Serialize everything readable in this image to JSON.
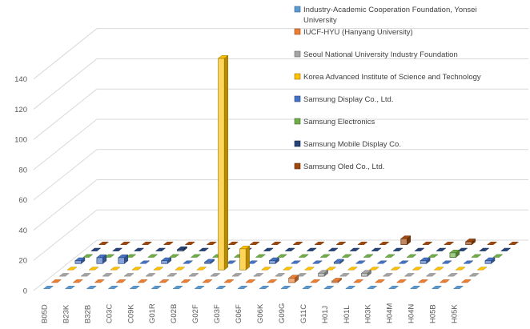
{
  "chart_data": {
    "type": "bar",
    "style": "3d-column",
    "title": "",
    "xlabel": "",
    "ylabel": "",
    "ylim": [
      0,
      150
    ],
    "yticks": [
      0,
      20,
      40,
      60,
      80,
      100,
      120,
      140
    ],
    "grid": true,
    "legend_position": "right",
    "categories": [
      "B05D",
      "B23K",
      "B32B",
      "C03C",
      "C09K",
      "G01R",
      "G02B",
      "G02F",
      "G03F",
      "G06F",
      "G06K",
      "G09G",
      "G11C",
      "H01J",
      "H01L",
      "H03K",
      "H04M",
      "H04N",
      "H05B",
      "H05K"
    ],
    "x_tick_labels": [
      "B05D",
      "B23K",
      "B32B",
      "C03C",
      "C09K",
      "G01R",
      "G02B",
      "G02F",
      "G03F",
      "G06F",
      "G06K",
      "G09G",
      "G11C",
      "H01J",
      "H01L",
      "H03K",
      "H04M",
      "H04N",
      "H05B",
      "H05K"
    ],
    "series": [
      {
        "name": "Industry-Academic Cooperation  Foundation, Yonsei University",
        "color": "#5B9BD5",
        "values": [
          0,
          0,
          0,
          0,
          0,
          0,
          0,
          0,
          0,
          0,
          0,
          0,
          0,
          0,
          0,
          0,
          0,
          0,
          0,
          0
        ]
      },
      {
        "name": "IUCF-HYU (Hanyang University)",
        "color": "#ED7D31",
        "values": [
          0,
          0,
          0,
          0,
          0,
          0,
          0,
          0,
          0,
          0,
          0,
          3,
          0,
          1,
          0,
          0,
          0,
          0,
          0,
          0
        ]
      },
      {
        "name": "Seoul National University Industry Foundation",
        "color": "#A5A5A5",
        "values": [
          0,
          0,
          0,
          0,
          0,
          0,
          0,
          0,
          0,
          0,
          0,
          0,
          2,
          0,
          2,
          0,
          0,
          0,
          0,
          0
        ]
      },
      {
        "name": "Korea Advanced  Institute of Science and Technology",
        "color": "#FFC000",
        "values": [
          0,
          0,
          0,
          0,
          0,
          0,
          0,
          140,
          14,
          0,
          0,
          0,
          0,
          0,
          0,
          0,
          0,
          0,
          0,
          0
        ]
      },
      {
        "name": "Samsung Display Co., Ltd.",
        "color": "#4472C4",
        "values": [
          2,
          4,
          4,
          0,
          2,
          0,
          1,
          0,
          0,
          2,
          0,
          0,
          1,
          0,
          0,
          0,
          2,
          0,
          0,
          2
        ]
      },
      {
        "name": "Samsung Electronics",
        "color": "#70AD47",
        "values": [
          0,
          0,
          0,
          0,
          0,
          0,
          0,
          0,
          0,
          0,
          0,
          0,
          0,
          0,
          0,
          0,
          0,
          3,
          0,
          0
        ]
      },
      {
        "name": "Samsung Mobile Display Co.",
        "color": "#264478",
        "values": [
          0,
          0,
          0,
          0,
          1,
          0,
          0,
          0,
          0,
          0,
          0,
          0,
          0,
          0,
          0,
          0,
          0,
          0,
          0,
          0
        ]
      },
      {
        "name": "Samsung Oled Co., Ltd.",
        "color": "#9E480E",
        "values": [
          0,
          0,
          0,
          0,
          0,
          0,
          0,
          0,
          0,
          0,
          0,
          0,
          0,
          0,
          4,
          0,
          0,
          2,
          0,
          0
        ]
      }
    ]
  }
}
